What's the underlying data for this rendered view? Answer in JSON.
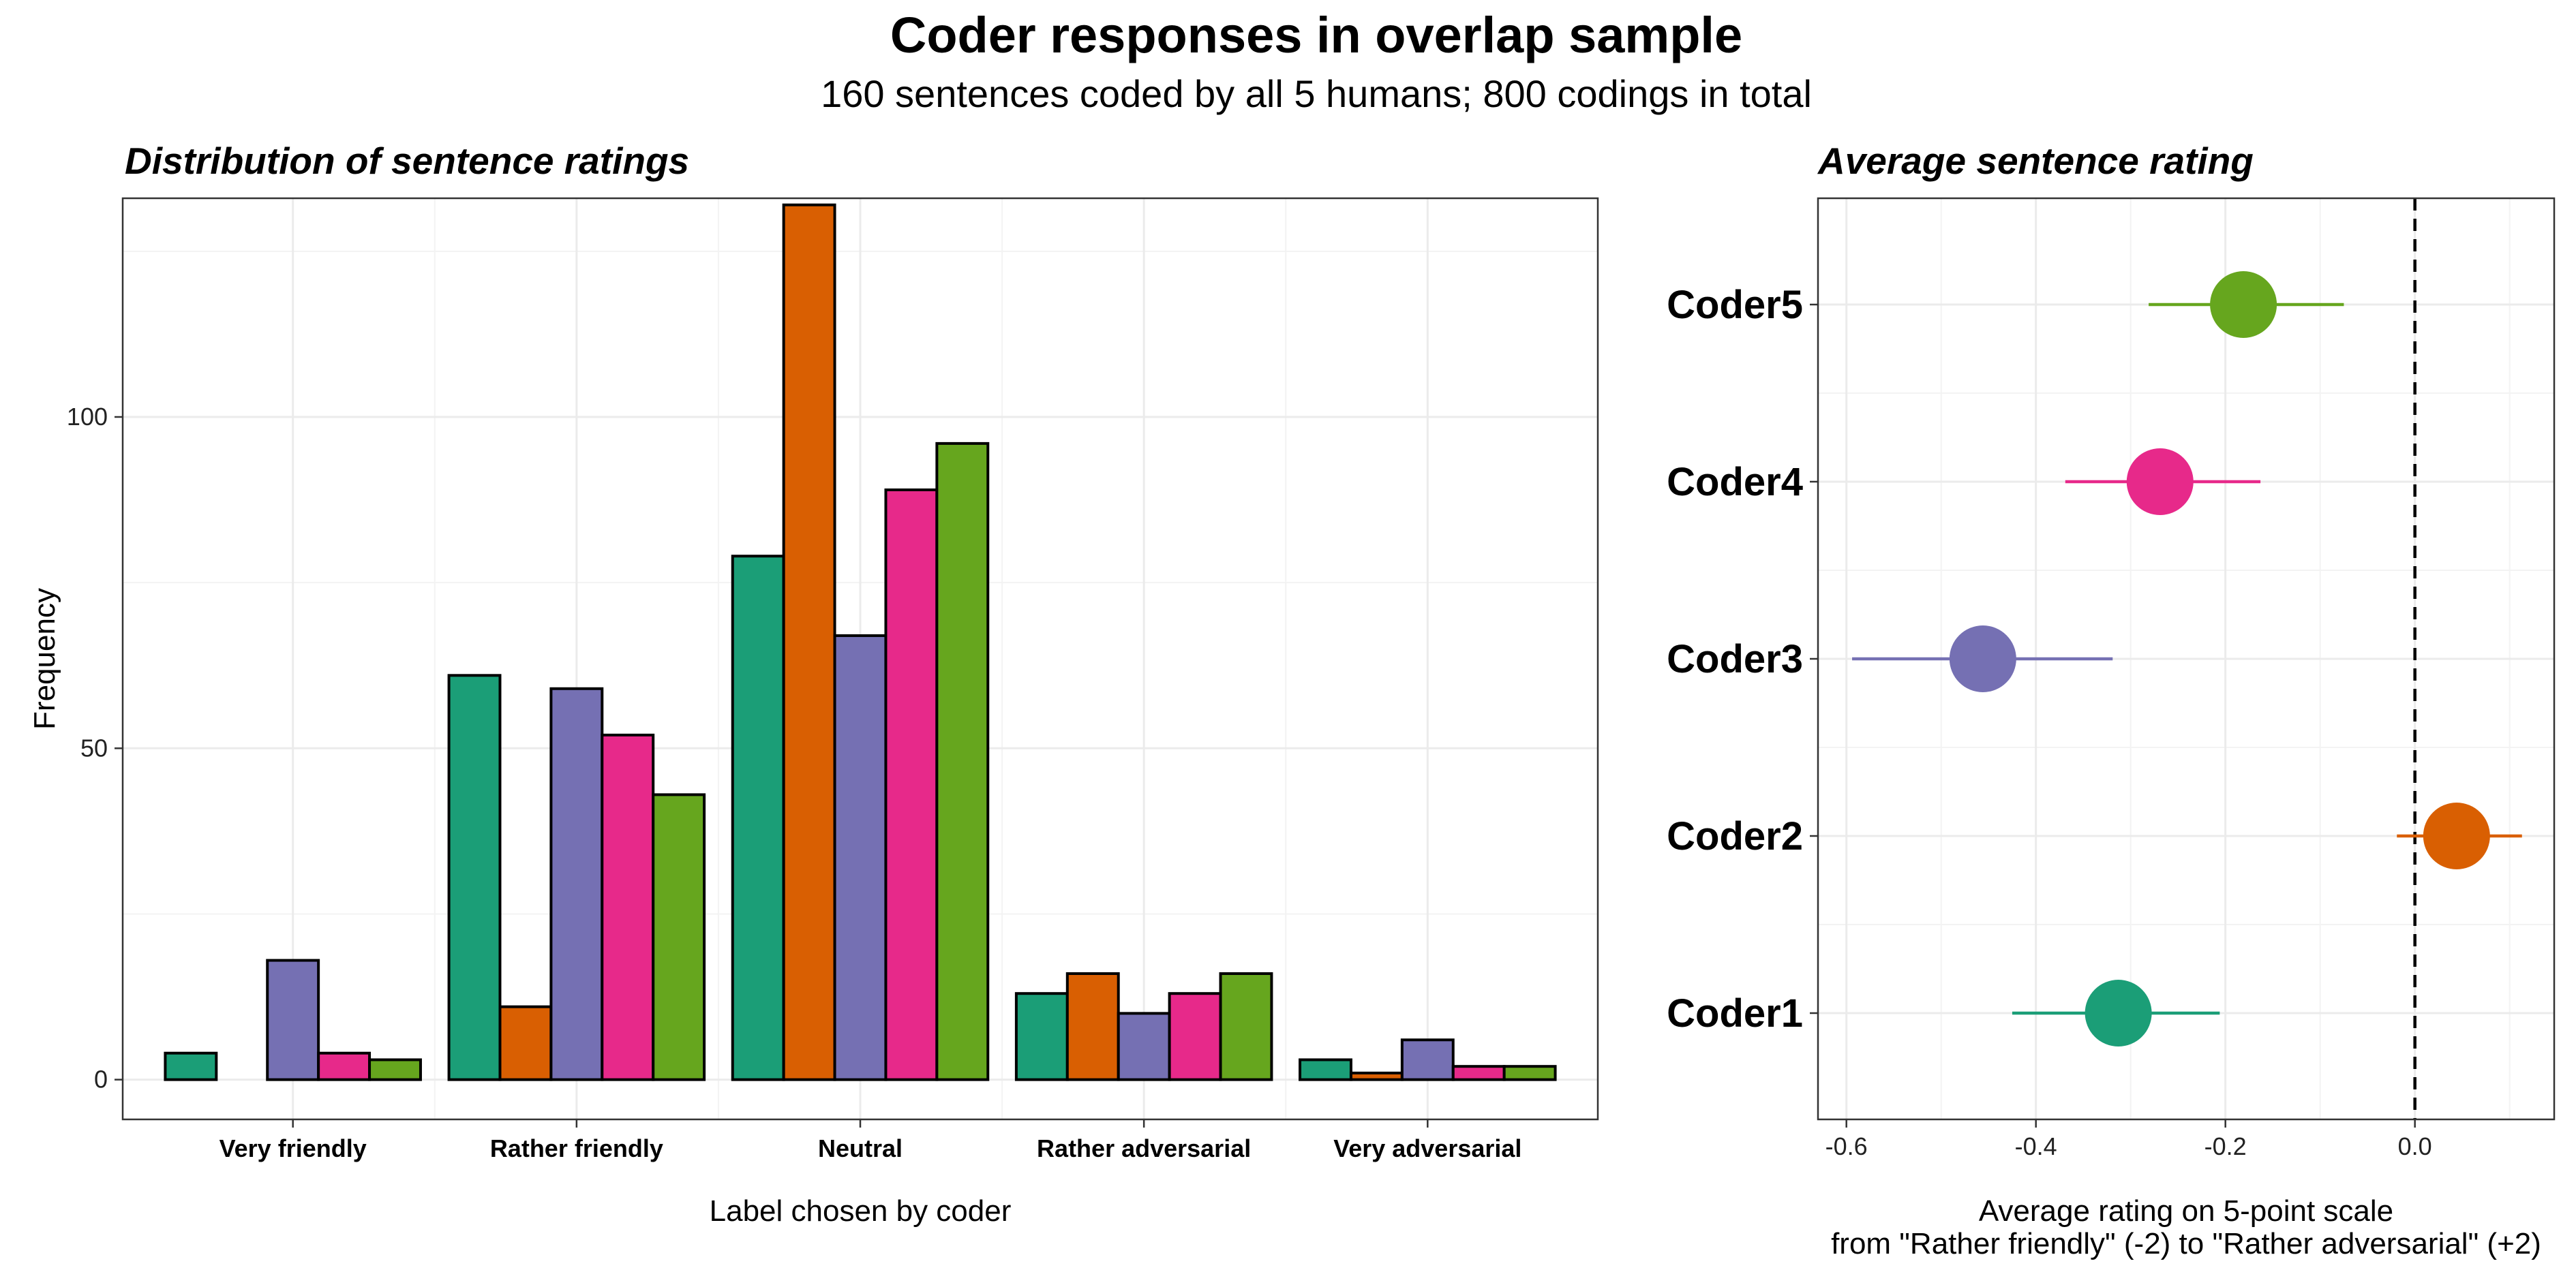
{
  "title": "Coder responses in overlap sample",
  "subtitle": "160 sentences coded by all 5 humans; 800 codings in total",
  "chart_data": [
    {
      "type": "bar",
      "title": "Distribution of sentence ratings",
      "xlabel": "Label chosen by coder",
      "ylabel": "Frequency",
      "categories": [
        "Very friendly",
        "Rather friendly",
        "Neutral",
        "Rather adversarial",
        "Very adversarial"
      ],
      "ylim": [
        -6,
        133
      ],
      "yticks": [
        0,
        50,
        100
      ],
      "grid": true,
      "series": [
        {
          "color": "#1b9e77",
          "values": [
            4,
            61,
            79,
            13,
            3
          ]
        },
        {
          "color": "#d95f02",
          "values": [
            null,
            11,
            132,
            16,
            1
          ]
        },
        {
          "color": "#7570b3",
          "values": [
            18,
            59,
            67,
            10,
            6
          ]
        },
        {
          "color": "#e7298a",
          "values": [
            4,
            52,
            89,
            13,
            2
          ]
        },
        {
          "color": "#66a61e",
          "values": [
            3,
            43,
            96,
            16,
            2
          ]
        }
      ]
    },
    {
      "type": "scatter",
      "title": "Average sentence rating",
      "xlabel_line1": "Average rating on 5-point scale",
      "xlabel_line2": "from \"Rather friendly\" (-2) to \"Rather adversarial\" (+2)",
      "xlim": [
        -0.63,
        0.147
      ],
      "xticks": [
        -0.6,
        -0.4,
        -0.2,
        0.0
      ],
      "reference_line_x": 0,
      "grid": true,
      "categories": [
        "Coder1",
        "Coder2",
        "Coder3",
        "Coder4",
        "Coder5"
      ],
      "points": [
        {
          "coder": "Coder1",
          "mean": -0.313,
          "lo": -0.425,
          "hi": -0.206,
          "color": "#1b9e77"
        },
        {
          "coder": "Coder2",
          "mean": 0.044,
          "lo": -0.019,
          "hi": 0.113,
          "color": "#d95f02"
        },
        {
          "coder": "Coder3",
          "mean": -0.456,
          "lo": -0.594,
          "hi": -0.319,
          "color": "#7570b3"
        },
        {
          "coder": "Coder4",
          "mean": -0.269,
          "lo": -0.369,
          "hi": -0.163,
          "color": "#e7298a"
        },
        {
          "coder": "Coder5",
          "mean": -0.181,
          "lo": -0.281,
          "hi": -0.075,
          "color": "#66a61e"
        }
      ]
    }
  ]
}
